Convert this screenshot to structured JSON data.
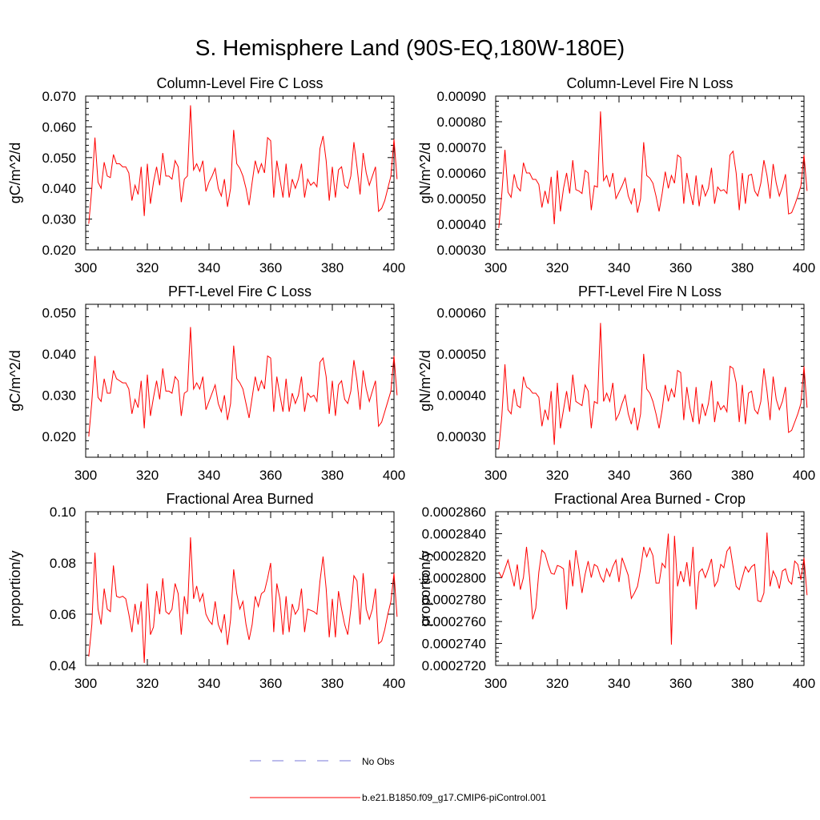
{
  "title": "S. Hemisphere Land (90S-EQ,180W-180E)",
  "colors": {
    "series": "#ff0000",
    "obs": "#7a7ad8",
    "axis": "#000000"
  },
  "chart_data": [
    {
      "type": "line",
      "title": "Column-Level Fire C Loss",
      "ylabel": "gC/m^2/d",
      "xlim": [
        300,
        400
      ],
      "ylim": [
        0.02,
        0.07
      ],
      "yticks": [
        "0.020",
        "0.030",
        "0.040",
        "0.050",
        "0.060",
        "0.070"
      ],
      "xticks": [
        "300",
        "320",
        "340",
        "360",
        "380",
        "400"
      ],
      "x_start": 301,
      "series": [
        {
          "name": "b.e21.B1850.f09_g17.CMIP6-piControl.001",
          "values": [
            0.0285,
            0.04,
            0.0565,
            0.042,
            0.04,
            0.0485,
            0.044,
            0.0435,
            0.051,
            0.048,
            0.048,
            0.047,
            0.047,
            0.045,
            0.036,
            0.041,
            0.038,
            0.047,
            0.031,
            0.048,
            0.035,
            0.042,
            0.047,
            0.041,
            0.0515,
            0.044,
            0.044,
            0.043,
            0.049,
            0.047,
            0.0355,
            0.043,
            0.044,
            0.067,
            0.046,
            0.048,
            0.0455,
            0.049,
            0.039,
            0.042,
            0.044,
            0.0465,
            0.04,
            0.0375,
            0.043,
            0.034,
            0.04,
            0.059,
            0.048,
            0.0465,
            0.044,
            0.04,
            0.0345,
            0.042,
            0.049,
            0.045,
            0.048,
            0.045,
            0.0565,
            0.0555,
            0.037,
            0.049,
            0.043,
            0.037,
            0.048,
            0.037,
            0.043,
            0.04,
            0.043,
            0.048,
            0.037,
            0.043,
            0.041,
            0.042,
            0.0405,
            0.053,
            0.057,
            0.049,
            0.036,
            0.047,
            0.037,
            0.046,
            0.047,
            0.041,
            0.04,
            0.044,
            0.055,
            0.047,
            0.038,
            0.0515,
            0.045,
            0.041,
            0.044,
            0.047,
            0.0325,
            0.0335,
            0.036,
            0.04,
            0.044,
            0.056,
            0.043
          ]
        }
      ]
    },
    {
      "type": "line",
      "title": "Column-Level Fire N Loss",
      "ylabel": "gN/m^2/d",
      "xlim": [
        300,
        400
      ],
      "ylim": [
        0.0003,
        0.0009
      ],
      "yticks": [
        "0.00030",
        "0.00040",
        "0.00050",
        "0.00060",
        "0.00070",
        "0.00080",
        "0.00090"
      ],
      "xticks": [
        "300",
        "320",
        "340",
        "360",
        "380",
        "400"
      ],
      "x_start": 301,
      "series": [
        {
          "name": "b.e21.B1850.f09_g17.CMIP6-piControl.001",
          "values": [
            0.000385,
            0.00052,
            0.00069,
            0.000525,
            0.000505,
            0.000595,
            0.000545,
            0.00053,
            0.00064,
            0.0006,
            0.0006,
            0.000575,
            0.000575,
            0.000555,
            0.000465,
            0.00053,
            0.00048,
            0.000585,
            0.0004,
            0.00061,
            0.00045,
            0.00054,
            0.0006,
            0.00052,
            0.00065,
            0.000535,
            0.00053,
            0.00052,
            0.00061,
            0.0006,
            0.000455,
            0.00055,
            0.000545,
            0.00084,
            0.00057,
            0.00059,
            0.000545,
            0.0006,
            0.0005,
            0.000525,
            0.00055,
            0.00058,
            0.00051,
            0.00048,
            0.00054,
            0.000445,
            0.0005,
            0.00072,
            0.00059,
            0.00058,
            0.00056,
            0.00051,
            0.00045,
            0.00052,
            0.000605,
            0.00054,
            0.00059,
            0.00056,
            0.00067,
            0.00066,
            0.00048,
            0.0006,
            0.00053,
            0.000475,
            0.00059,
            0.00047,
            0.000555,
            0.00051,
            0.00054,
            0.00062,
            0.00048,
            0.000545,
            0.00053,
            0.000535,
            0.00052,
            0.00067,
            0.000685,
            0.0006,
            0.000455,
            0.0006,
            0.00048,
            0.00059,
            0.000595,
            0.00053,
            0.00051,
            0.00056,
            0.00065,
            0.00059,
            0.0005,
            0.000635,
            0.00056,
            0.00051,
            0.000545,
            0.000595,
            0.00044,
            0.000445,
            0.000475,
            0.00051,
            0.00055,
            0.00067,
            0.00053
          ]
        }
      ]
    },
    {
      "type": "line",
      "title": "PFT-Level Fire C Loss",
      "ylabel": "gC/m^2/d",
      "xlim": [
        300,
        400
      ],
      "ylim": [
        0.015,
        0.052
      ],
      "yticks": [
        "0.020",
        "0.030",
        "0.040",
        "0.050"
      ],
      "ytick_values": [
        0.02,
        0.03,
        0.04,
        0.05
      ],
      "xticks": [
        "300",
        "320",
        "340",
        "360",
        "380",
        "400"
      ],
      "x_start": 301,
      "series": [
        {
          "name": "b.e21.B1850.f09_g17.CMIP6-piControl.001",
          "values": [
            0.02,
            0.0285,
            0.0395,
            0.0295,
            0.0285,
            0.034,
            0.0305,
            0.0305,
            0.036,
            0.034,
            0.0335,
            0.033,
            0.033,
            0.0315,
            0.0255,
            0.029,
            0.027,
            0.0335,
            0.022,
            0.035,
            0.025,
            0.0295,
            0.0335,
            0.029,
            0.0365,
            0.031,
            0.031,
            0.0305,
            0.0345,
            0.0335,
            0.025,
            0.0305,
            0.031,
            0.0465,
            0.0315,
            0.033,
            0.0315,
            0.0345,
            0.0265,
            0.0285,
            0.0305,
            0.0325,
            0.028,
            0.026,
            0.03,
            0.024,
            0.028,
            0.042,
            0.034,
            0.033,
            0.0315,
            0.028,
            0.0245,
            0.0295,
            0.0345,
            0.031,
            0.0335,
            0.0315,
            0.0395,
            0.039,
            0.026,
            0.0345,
            0.03,
            0.026,
            0.034,
            0.026,
            0.0305,
            0.028,
            0.03,
            0.0345,
            0.026,
            0.0305,
            0.0295,
            0.03,
            0.0285,
            0.038,
            0.039,
            0.0345,
            0.0255,
            0.0335,
            0.025,
            0.0325,
            0.0335,
            0.029,
            0.028,
            0.031,
            0.0385,
            0.0335,
            0.0265,
            0.036,
            0.0315,
            0.0285,
            0.031,
            0.0335,
            0.0225,
            0.0235,
            0.026,
            0.0285,
            0.031,
            0.0395,
            0.03
          ]
        }
      ]
    },
    {
      "type": "line",
      "title": "PFT-Level Fire N Loss",
      "ylabel": "gN/m^2/d",
      "xlim": [
        300,
        400
      ],
      "ylim": [
        0.00025,
        0.00062
      ],
      "yticks": [
        "0.00030",
        "0.00040",
        "0.00050",
        "0.00060"
      ],
      "ytick_values": [
        0.0003,
        0.0004,
        0.0005,
        0.0006
      ],
      "xticks": [
        "300",
        "320",
        "340",
        "360",
        "380",
        "400"
      ],
      "x_start": 301,
      "series": [
        {
          "name": "b.e21.B1850.f09_g17.CMIP6-piControl.001",
          "values": [
            0.00027,
            0.00035,
            0.000475,
            0.000365,
            0.000355,
            0.000415,
            0.000375,
            0.00037,
            0.000445,
            0.00042,
            0.000415,
            0.000405,
            0.000405,
            0.000395,
            0.000325,
            0.000365,
            0.00034,
            0.00041,
            0.00028,
            0.00043,
            0.00032,
            0.000365,
            0.00041,
            0.00036,
            0.00045,
            0.000385,
            0.00038,
            0.000375,
            0.000425,
            0.00041,
            0.00032,
            0.000385,
            0.00038,
            0.000575,
            0.000385,
            0.000405,
            0.000385,
            0.00043,
            0.00034,
            0.000355,
            0.00038,
            0.0004,
            0.000355,
            0.00033,
            0.00037,
            0.000315,
            0.000355,
            0.0005,
            0.000415,
            0.000405,
            0.000385,
            0.000355,
            0.00032,
            0.000365,
            0.000425,
            0.000385,
            0.000415,
            0.000395,
            0.00046,
            0.000455,
            0.00034,
            0.00042,
            0.00037,
            0.000335,
            0.00042,
            0.00033,
            0.00038,
            0.00035,
            0.00038,
            0.000435,
            0.000335,
            0.000385,
            0.000365,
            0.000375,
            0.00036,
            0.00047,
            0.000465,
            0.00043,
            0.000335,
            0.000425,
            0.00033,
            0.000405,
            0.00041,
            0.000365,
            0.000355,
            0.000385,
            0.000465,
            0.00041,
            0.00034,
            0.000445,
            0.00039,
            0.000365,
            0.000385,
            0.00042,
            0.00031,
            0.000315,
            0.000335,
            0.000355,
            0.00038,
            0.00047,
            0.00037
          ]
        }
      ]
    },
    {
      "type": "line",
      "title": "Fractional Area Burned",
      "ylabel": "proportion/y",
      "xlim": [
        300,
        400
      ],
      "ylim": [
        0.04,
        0.1
      ],
      "yticks": [
        "0.04",
        "0.06",
        "0.08",
        "0.10"
      ],
      "ytick_values": [
        0.04,
        0.06,
        0.08,
        0.1
      ],
      "xticks": [
        "300",
        "320",
        "340",
        "360",
        "380",
        "400"
      ],
      "x_start": 301,
      "series": [
        {
          "name": "b.e21.B1850.f09_g17.CMIP6-piControl.001",
          "values": [
            0.0435,
            0.056,
            0.084,
            0.062,
            0.056,
            0.07,
            0.062,
            0.061,
            0.079,
            0.067,
            0.0665,
            0.067,
            0.066,
            0.06,
            0.053,
            0.064,
            0.056,
            0.065,
            0.041,
            0.072,
            0.052,
            0.055,
            0.069,
            0.06,
            0.074,
            0.061,
            0.06,
            0.062,
            0.072,
            0.068,
            0.052,
            0.067,
            0.06,
            0.09,
            0.066,
            0.071,
            0.065,
            0.068,
            0.06,
            0.0575,
            0.056,
            0.065,
            0.056,
            0.053,
            0.06,
            0.048,
            0.058,
            0.0775,
            0.068,
            0.062,
            0.065,
            0.056,
            0.05,
            0.056,
            0.067,
            0.063,
            0.068,
            0.069,
            0.074,
            0.08,
            0.053,
            0.072,
            0.066,
            0.052,
            0.067,
            0.053,
            0.064,
            0.06,
            0.062,
            0.07,
            0.053,
            0.062,
            0.0615,
            0.061,
            0.06,
            0.073,
            0.0825,
            0.07,
            0.051,
            0.066,
            0.051,
            0.069,
            0.062,
            0.056,
            0.052,
            0.062,
            0.075,
            0.073,
            0.056,
            0.076,
            0.062,
            0.058,
            0.062,
            0.07,
            0.0485,
            0.0495,
            0.054,
            0.06,
            0.065,
            0.076,
            0.059
          ]
        }
      ]
    },
    {
      "type": "line",
      "title": "Fractional Area Burned - Crop",
      "ylabel": "proportion/y",
      "xlim": [
        300,
        400
      ],
      "ylim": [
        0.000272,
        0.000286
      ],
      "yticks": [
        "0.0002720",
        "0.0002740",
        "0.0002760",
        "0.0002780",
        "0.0002800",
        "0.0002820",
        "0.0002840",
        "0.0002860"
      ],
      "xticks": [
        "300",
        "320",
        "340",
        "360",
        "380",
        "400"
      ],
      "x_start": 301,
      "series": [
        {
          "name": "b.e21.B1850.f09_g17.CMIP6-piControl.001",
          "values": [
            0.0002805,
            0.00028,
            0.0002808,
            0.0002816,
            0.0002804,
            0.0002792,
            0.0002812,
            0.0002789,
            0.00028,
            0.0002828,
            0.00028,
            0.0002762,
            0.0002772,
            0.0002805,
            0.0002825,
            0.0002822,
            0.0002812,
            0.0002804,
            0.0002803,
            0.0002811,
            0.000281,
            0.0002808,
            0.0002771,
            0.0002816,
            0.0002792,
            0.0002825,
            0.0002808,
            0.0002786,
            0.0002803,
            0.0002815,
            0.00028,
            0.0002812,
            0.000281,
            0.0002801,
            0.0002796,
            0.0002808,
            0.0002801,
            0.000281,
            0.0002816,
            0.0002796,
            0.0002818,
            0.000281,
            0.0002802,
            0.0002781,
            0.0002786,
            0.0002792,
            0.0002808,
            0.0002828,
            0.0002819,
            0.0002827,
            0.000282,
            0.0002795,
            0.0002795,
            0.0002813,
            0.0002809,
            0.000284,
            0.0002739,
            0.0002838,
            0.0002792,
            0.0002806,
            0.0002796,
            0.0002814,
            0.0002792,
            0.0002828,
            0.0002771,
            0.0002805,
            0.0002808,
            0.00028,
            0.0002808,
            0.0002817,
            0.0002792,
            0.0002797,
            0.0002812,
            0.0002809,
            0.0002824,
            0.0002828,
            0.000281,
            0.0002792,
            0.0002789,
            0.00028,
            0.000281,
            0.0002805,
            0.000281,
            0.0002812,
            0.0002779,
            0.0002778,
            0.0002786,
            0.0002841,
            0.0002792,
            0.0002806,
            0.00028,
            0.000279,
            0.0002806,
            0.0002808,
            0.0002797,
            0.0002794,
            0.0002815,
            0.0002812,
            0.0002798,
            0.0002818,
            0.0002784
          ]
        }
      ]
    }
  ],
  "legend": [
    {
      "label": "No Obs",
      "style": "dashed"
    },
    {
      "label": "b.e21.B1850.f09_g17.CMIP6-piControl.001",
      "style": "solid"
    }
  ]
}
